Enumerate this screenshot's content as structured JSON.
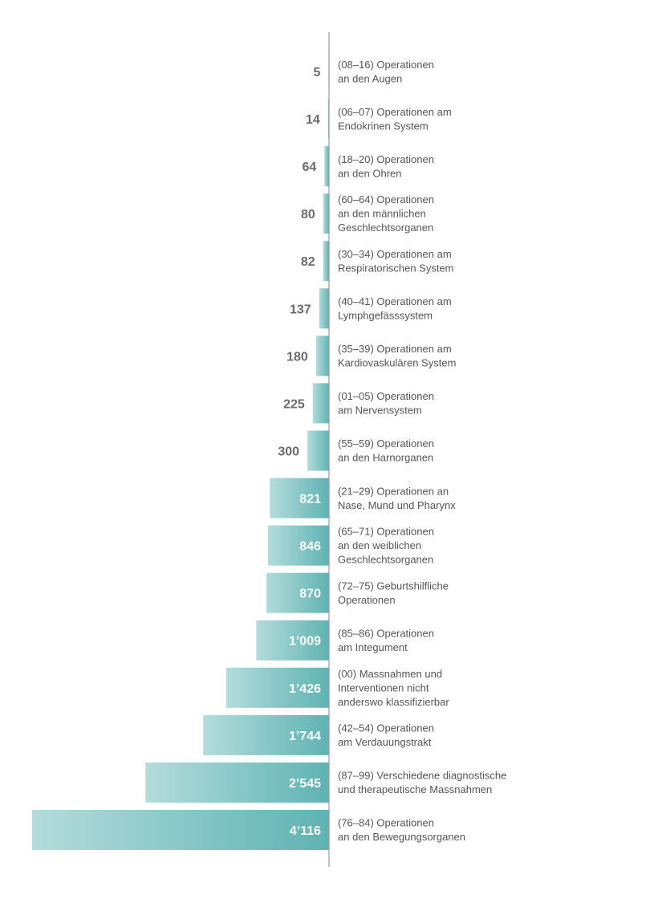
{
  "colors": {
    "bar_dark": "#5fb3b3",
    "bar_light": "#b4dcdc",
    "axis": "#9a9a9a",
    "label_out": "#6b6b6b",
    "label_in": "#ffffff",
    "category_text": "#555555"
  },
  "chart_data": {
    "type": "bar",
    "orientation": "horizontal",
    "categories": [
      [
        "(08–16) Operationen",
        "an den Augen"
      ],
      [
        "(06–07) Operationen am",
        "Endokrinen System"
      ],
      [
        "(18–20) Operationen",
        "an den Ohren"
      ],
      [
        "(60–64) Operationen",
        "an den männlichen",
        "Geschlechtsorganen"
      ],
      [
        "(30–34) Operationen am",
        "Respiratorischen System"
      ],
      [
        "(40–41) Operationen am",
        "Lymphgefässsystem"
      ],
      [
        "(35–39) Operationen am",
        "Kardiovaskulären System"
      ],
      [
        "(01–05) Operationen",
        "am Nervensystem"
      ],
      [
        "(55–59) Operationen",
        "an den Harnorganen"
      ],
      [
        "(21–29) Operationen an",
        "Nase, Mund und Pharynx"
      ],
      [
        "(65–71) Operationen",
        "an den weiblichen",
        "Geschlechtsorganen"
      ],
      [
        "(72–75) Geburtshilfliche",
        "Operationen"
      ],
      [
        "(85–86) Operationen",
        "am Integument"
      ],
      [
        "(00) Massnahmen und",
        "Interventionen nicht",
        "anderswo klassifizierbar"
      ],
      [
        "(42–54) Operationen",
        "am Verdauungstrakt"
      ],
      [
        "(87–99) Verschiedene diagnostische",
        "und therapeutische Massnahmen"
      ],
      [
        "(76–84) Operationen",
        "an den Bewegungsorganen"
      ]
    ],
    "values": [
      5,
      14,
      64,
      80,
      82,
      137,
      180,
      225,
      300,
      821,
      846,
      870,
      1009,
      1426,
      1744,
      2545,
      4116
    ],
    "value_labels": [
      "5",
      "14",
      "64",
      "80",
      "82",
      "137",
      "180",
      "225",
      "300",
      "821",
      "846",
      "870",
      "1’009",
      "1’426",
      "1’744",
      "2’545",
      "4’116"
    ],
    "xlim": [
      0,
      4116
    ],
    "legend": "none",
    "grid": false
  }
}
